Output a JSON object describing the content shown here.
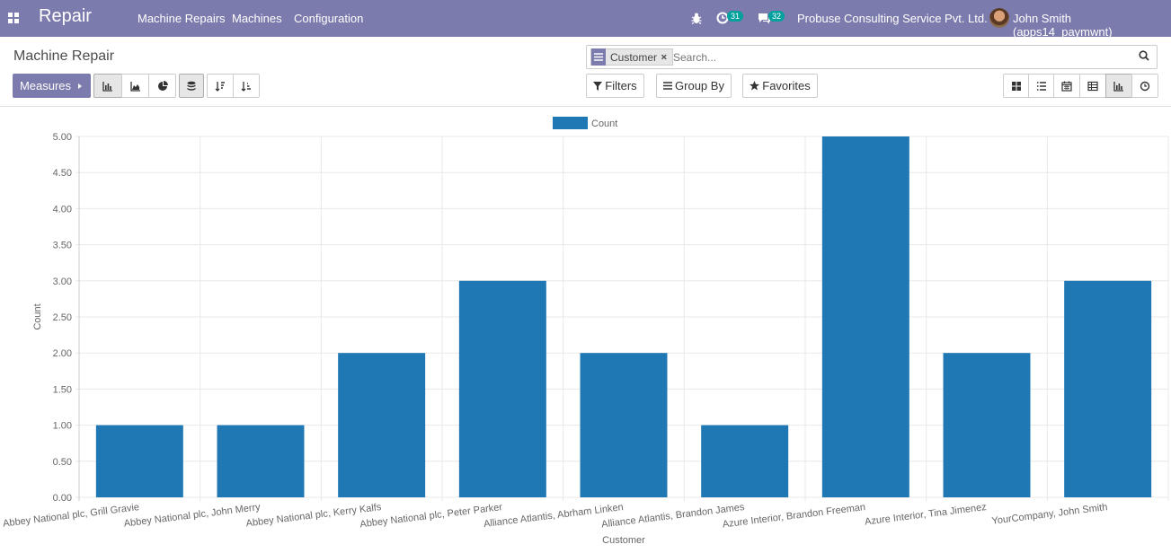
{
  "navbar": {
    "app_title": "Repair",
    "menu": [
      "Machine Repairs",
      "Machines",
      "Configuration"
    ],
    "activity_count": "31",
    "messages_count": "32",
    "company": "Probuse Consulting Service Pvt. Ltd.",
    "user": "John Smith (apps14_paymwnt)"
  },
  "control_panel": {
    "breadcrumb": "Machine Repair",
    "search": {
      "facet_label": "Customer",
      "placeholder": "Search..."
    },
    "measures_label": "Measures",
    "filters_label": "Filters",
    "groupby_label": "Group By",
    "favorites_label": "Favorites"
  },
  "chart_data": {
    "type": "bar",
    "categories": [
      "Abbey National plc, Grill Gravie",
      "Abbey National plc, John Merry",
      "Abbey National plc, Kerry Kalfs",
      "Abbey National plc, Peter Parker",
      "Alliance Atlantis, Abrham Linken",
      "Alliance Atlantis, Brandon James",
      "Azure Interior, Brandon Freeman",
      "Azure Interior, Tina Jimenez",
      "YourCompany, John Smith"
    ],
    "series": [
      {
        "name": "Count",
        "values": [
          1,
          1,
          2,
          3,
          2,
          1,
          5,
          2,
          3
        ],
        "color": "#1f77b4"
      }
    ],
    "xlabel": "Customer",
    "ylabel": "Count",
    "ylim": [
      0,
      5
    ],
    "yticks": [
      "0.00",
      "0.50",
      "1.00",
      "1.50",
      "2.00",
      "2.50",
      "3.00",
      "3.50",
      "4.00",
      "4.50",
      "5.00"
    ],
    "legend": "top-center",
    "grid": true
  }
}
